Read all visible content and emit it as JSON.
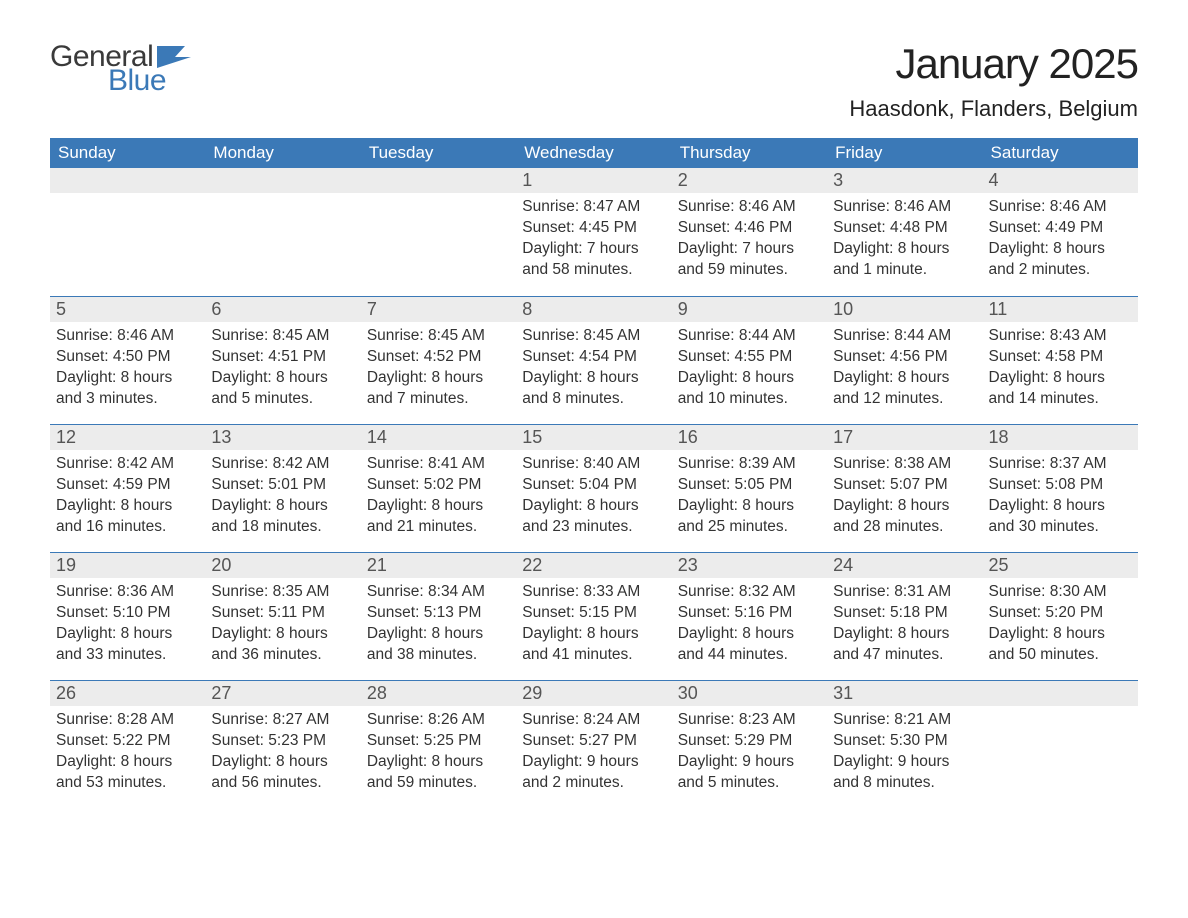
{
  "logo": {
    "top": "General",
    "bottom": "Blue"
  },
  "title": "January 2025",
  "location": "Haasdonk, Flanders, Belgium",
  "colors": {
    "header_bg": "#3b79b7",
    "header_text": "#ffffff",
    "daynum_bg": "#ececec",
    "daynum_text": "#555555",
    "body_text": "#333333",
    "rule": "#3b79b7",
    "logo_general": "#3a3a3a",
    "logo_blue": "#3b79b7"
  },
  "typography": {
    "title_fontsize": 42,
    "location_fontsize": 22,
    "weekday_fontsize": 17,
    "daynum_fontsize": 18,
    "info_fontsize": 15.5
  },
  "weekdays": [
    "Sunday",
    "Monday",
    "Tuesday",
    "Wednesday",
    "Thursday",
    "Friday",
    "Saturday"
  ],
  "weeks": [
    [
      {
        "day": "",
        "sunrise": "",
        "sunset": "",
        "daylight": ""
      },
      {
        "day": "",
        "sunrise": "",
        "sunset": "",
        "daylight": ""
      },
      {
        "day": "",
        "sunrise": "",
        "sunset": "",
        "daylight": ""
      },
      {
        "day": "1",
        "sunrise": "Sunrise: 8:47 AM",
        "sunset": "Sunset: 4:45 PM",
        "daylight": "Daylight: 7 hours and 58 minutes."
      },
      {
        "day": "2",
        "sunrise": "Sunrise: 8:46 AM",
        "sunset": "Sunset: 4:46 PM",
        "daylight": "Daylight: 7 hours and 59 minutes."
      },
      {
        "day": "3",
        "sunrise": "Sunrise: 8:46 AM",
        "sunset": "Sunset: 4:48 PM",
        "daylight": "Daylight: 8 hours and 1 minute."
      },
      {
        "day": "4",
        "sunrise": "Sunrise: 8:46 AM",
        "sunset": "Sunset: 4:49 PM",
        "daylight": "Daylight: 8 hours and 2 minutes."
      }
    ],
    [
      {
        "day": "5",
        "sunrise": "Sunrise: 8:46 AM",
        "sunset": "Sunset: 4:50 PM",
        "daylight": "Daylight: 8 hours and 3 minutes."
      },
      {
        "day": "6",
        "sunrise": "Sunrise: 8:45 AM",
        "sunset": "Sunset: 4:51 PM",
        "daylight": "Daylight: 8 hours and 5 minutes."
      },
      {
        "day": "7",
        "sunrise": "Sunrise: 8:45 AM",
        "sunset": "Sunset: 4:52 PM",
        "daylight": "Daylight: 8 hours and 7 minutes."
      },
      {
        "day": "8",
        "sunrise": "Sunrise: 8:45 AM",
        "sunset": "Sunset: 4:54 PM",
        "daylight": "Daylight: 8 hours and 8 minutes."
      },
      {
        "day": "9",
        "sunrise": "Sunrise: 8:44 AM",
        "sunset": "Sunset: 4:55 PM",
        "daylight": "Daylight: 8 hours and 10 minutes."
      },
      {
        "day": "10",
        "sunrise": "Sunrise: 8:44 AM",
        "sunset": "Sunset: 4:56 PM",
        "daylight": "Daylight: 8 hours and 12 minutes."
      },
      {
        "day": "11",
        "sunrise": "Sunrise: 8:43 AM",
        "sunset": "Sunset: 4:58 PM",
        "daylight": "Daylight: 8 hours and 14 minutes."
      }
    ],
    [
      {
        "day": "12",
        "sunrise": "Sunrise: 8:42 AM",
        "sunset": "Sunset: 4:59 PM",
        "daylight": "Daylight: 8 hours and 16 minutes."
      },
      {
        "day": "13",
        "sunrise": "Sunrise: 8:42 AM",
        "sunset": "Sunset: 5:01 PM",
        "daylight": "Daylight: 8 hours and 18 minutes."
      },
      {
        "day": "14",
        "sunrise": "Sunrise: 8:41 AM",
        "sunset": "Sunset: 5:02 PM",
        "daylight": "Daylight: 8 hours and 21 minutes."
      },
      {
        "day": "15",
        "sunrise": "Sunrise: 8:40 AM",
        "sunset": "Sunset: 5:04 PM",
        "daylight": "Daylight: 8 hours and 23 minutes."
      },
      {
        "day": "16",
        "sunrise": "Sunrise: 8:39 AM",
        "sunset": "Sunset: 5:05 PM",
        "daylight": "Daylight: 8 hours and 25 minutes."
      },
      {
        "day": "17",
        "sunrise": "Sunrise: 8:38 AM",
        "sunset": "Sunset: 5:07 PM",
        "daylight": "Daylight: 8 hours and 28 minutes."
      },
      {
        "day": "18",
        "sunrise": "Sunrise: 8:37 AM",
        "sunset": "Sunset: 5:08 PM",
        "daylight": "Daylight: 8 hours and 30 minutes."
      }
    ],
    [
      {
        "day": "19",
        "sunrise": "Sunrise: 8:36 AM",
        "sunset": "Sunset: 5:10 PM",
        "daylight": "Daylight: 8 hours and 33 minutes."
      },
      {
        "day": "20",
        "sunrise": "Sunrise: 8:35 AM",
        "sunset": "Sunset: 5:11 PM",
        "daylight": "Daylight: 8 hours and 36 minutes."
      },
      {
        "day": "21",
        "sunrise": "Sunrise: 8:34 AM",
        "sunset": "Sunset: 5:13 PM",
        "daylight": "Daylight: 8 hours and 38 minutes."
      },
      {
        "day": "22",
        "sunrise": "Sunrise: 8:33 AM",
        "sunset": "Sunset: 5:15 PM",
        "daylight": "Daylight: 8 hours and 41 minutes."
      },
      {
        "day": "23",
        "sunrise": "Sunrise: 8:32 AM",
        "sunset": "Sunset: 5:16 PM",
        "daylight": "Daylight: 8 hours and 44 minutes."
      },
      {
        "day": "24",
        "sunrise": "Sunrise: 8:31 AM",
        "sunset": "Sunset: 5:18 PM",
        "daylight": "Daylight: 8 hours and 47 minutes."
      },
      {
        "day": "25",
        "sunrise": "Sunrise: 8:30 AM",
        "sunset": "Sunset: 5:20 PM",
        "daylight": "Daylight: 8 hours and 50 minutes."
      }
    ],
    [
      {
        "day": "26",
        "sunrise": "Sunrise: 8:28 AM",
        "sunset": "Sunset: 5:22 PM",
        "daylight": "Daylight: 8 hours and 53 minutes."
      },
      {
        "day": "27",
        "sunrise": "Sunrise: 8:27 AM",
        "sunset": "Sunset: 5:23 PM",
        "daylight": "Daylight: 8 hours and 56 minutes."
      },
      {
        "day": "28",
        "sunrise": "Sunrise: 8:26 AM",
        "sunset": "Sunset: 5:25 PM",
        "daylight": "Daylight: 8 hours and 59 minutes."
      },
      {
        "day": "29",
        "sunrise": "Sunrise: 8:24 AM",
        "sunset": "Sunset: 5:27 PM",
        "daylight": "Daylight: 9 hours and 2 minutes."
      },
      {
        "day": "30",
        "sunrise": "Sunrise: 8:23 AM",
        "sunset": "Sunset: 5:29 PM",
        "daylight": "Daylight: 9 hours and 5 minutes."
      },
      {
        "day": "31",
        "sunrise": "Sunrise: 8:21 AM",
        "sunset": "Sunset: 5:30 PM",
        "daylight": "Daylight: 9 hours and 8 minutes."
      },
      {
        "day": "",
        "sunrise": "",
        "sunset": "",
        "daylight": ""
      }
    ]
  ]
}
